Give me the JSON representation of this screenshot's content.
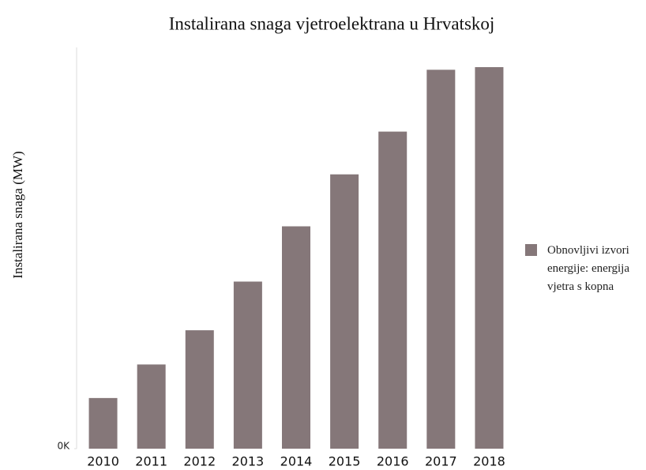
{
  "chart_data": {
    "type": "bar",
    "title": "Instalirana snaga vjetroelektrana u Hrvatskoj",
    "y_label": "Instalirana snaga (MW)",
    "categories": [
      "2010",
      "2011",
      "2012",
      "2013",
      "2014",
      "2015",
      "2016",
      "2017",
      "2018"
    ],
    "series": [
      {
        "name": "Obnovljivi izvori energije: energija vjetra s kopna",
        "color": "#857779",
        "values": [
          77,
          128,
          180,
          254,
          338,
          417,
          482,
          576,
          580
        ]
      }
    ],
    "ylim": [
      0,
      610
    ],
    "yticks": [
      {
        "value": 0,
        "label": "0K"
      }
    ],
    "legend": "right"
  }
}
